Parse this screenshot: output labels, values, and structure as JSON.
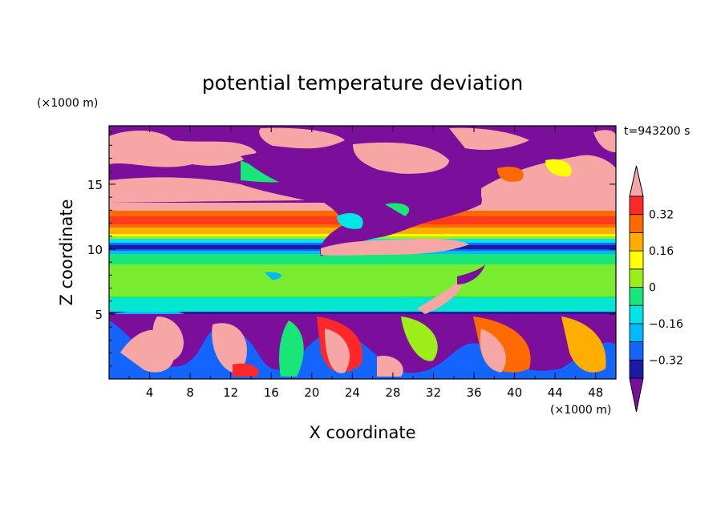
{
  "chart_data": {
    "type": "heatmap",
    "title": "potential temperature deviation",
    "xlabel": "X coordinate",
    "ylabel": "Z coordinate",
    "x_unit": "(×1000 m)",
    "y_unit": "(×1000 m)",
    "time_label": "t=943200 s",
    "xlim": [
      0,
      50
    ],
    "ylim": [
      0,
      19.5
    ],
    "x_ticks": [
      "4",
      "8",
      "12",
      "16",
      "20",
      "24",
      "28",
      "32",
      "36",
      "40",
      "44",
      "48"
    ],
    "y_ticks": [
      "5",
      "10",
      "15"
    ],
    "colorbar": {
      "levels": [
        -0.4,
        -0.32,
        -0.24,
        -0.16,
        -0.08,
        0,
        0.08,
        0.16,
        0.24,
        0.32,
        0.4
      ],
      "labels": [
        "0.32",
        "0.16",
        "0",
        "−0.16",
        "−0.32"
      ],
      "colors": [
        "#7b0f9c",
        "#1a1aa6",
        "#1464ff",
        "#00b9ff",
        "#00e6e6",
        "#18e678",
        "#9bee18",
        "#ffff00",
        "#ffae00",
        "#ff6a00",
        "#ff2828",
        "#f7a6a6"
      ]
    },
    "layers": [
      {
        "z_range": [
          16,
          19.5
        ],
        "description_values": "mixed pink (>0.4) and purple (<-0.4) patches"
      },
      {
        "z_range": [
          11,
          13
        ],
        "value": 0.3
      },
      {
        "z_range": [
          9,
          10
        ],
        "value": -0.35
      },
      {
        "z_range": [
          5.2,
          9
        ],
        "value": 0.04
      },
      {
        "z_range": [
          0,
          5.2
        ],
        "description_values": "turbulent eddies, pink and purple"
      }
    ]
  }
}
